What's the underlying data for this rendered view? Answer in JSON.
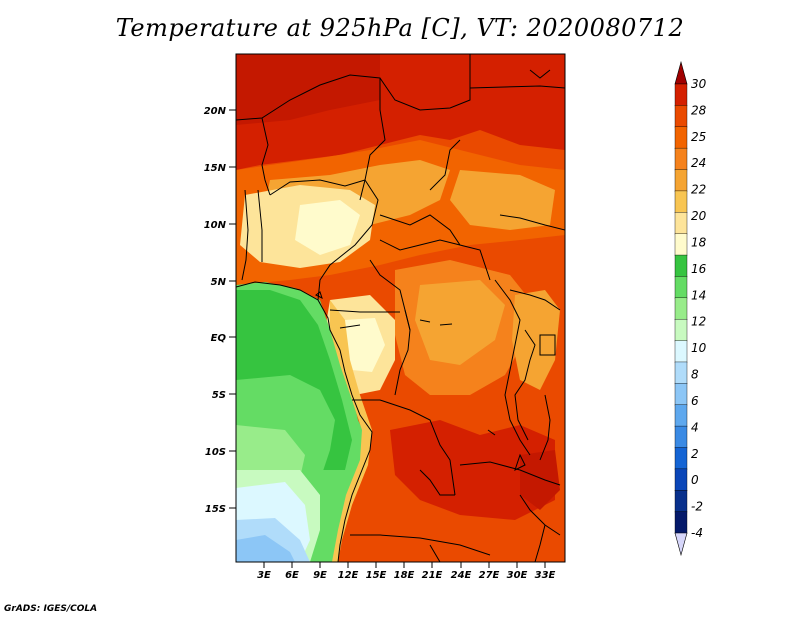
{
  "title": "Temperature at 925hPa [C], VT: 2020080712",
  "credit": "GrADS: IGES/COLA",
  "map": {
    "lat_ticks": [
      "20N",
      "15N",
      "10N",
      "5N",
      "EQ",
      "5S",
      "10S",
      "15S"
    ],
    "lon_ticks": [
      "3E",
      "6E",
      "9E",
      "12E",
      "15E",
      "18E",
      "21E",
      "24E",
      "27E",
      "30E",
      "33E"
    ]
  },
  "colorbar": {
    "labels": [
      "30",
      "28",
      "25",
      "24",
      "22",
      "20",
      "18",
      "16",
      "14",
      "12",
      "10",
      "8",
      "6",
      "4",
      "2",
      "0",
      "-2",
      "-4"
    ],
    "colors": [
      "#a00000",
      "#d42000",
      "#ea4a00",
      "#f26400",
      "#f5821c",
      "#f5a432",
      "#f8c552",
      "#fde49a",
      "#fffbcc",
      "#36c440",
      "#64dc64",
      "#98ec8a",
      "#c8fac0",
      "#dcf8ff",
      "#b0dcfa",
      "#8cc6f6",
      "#5ea8ee",
      "#3a8ae4",
      "#1464d4",
      "#0a46b8",
      "#08308c",
      "#04196a",
      "#d6d6fa"
    ]
  }
}
